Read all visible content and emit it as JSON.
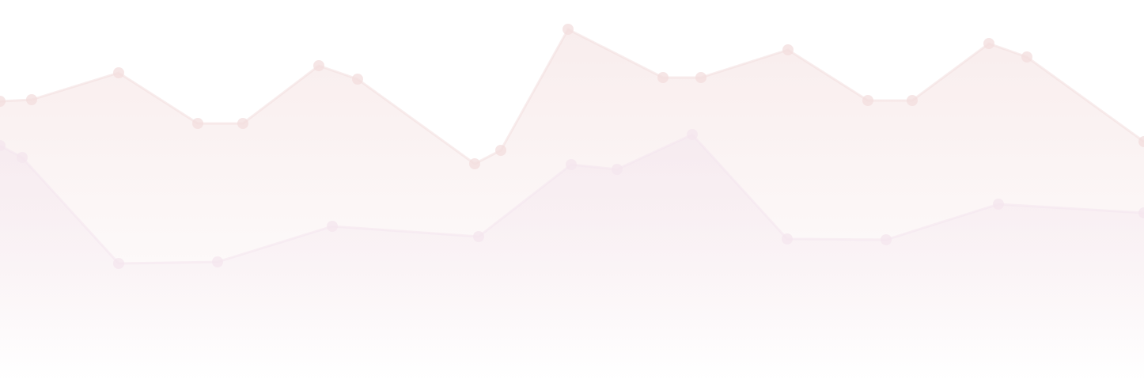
{
  "chart_data": {
    "type": "area",
    "title": "",
    "xlabel": "",
    "ylabel": "",
    "grid": false,
    "legend": "none",
    "ylim": [
      0,
      479
    ],
    "series": [
      {
        "color": "#f3dede",
        "points": [
          {
            "x": 0,
            "y": 351
          },
          {
            "x": 40,
            "y": 353
          },
          {
            "x": 150,
            "y": 387
          },
          {
            "x": 250,
            "y": 323
          },
          {
            "x": 307,
            "y": 323
          },
          {
            "x": 403,
            "y": 396
          },
          {
            "x": 452,
            "y": 379
          },
          {
            "x": 600,
            "y": 272
          },
          {
            "x": 633,
            "y": 289
          },
          {
            "x": 718,
            "y": 442
          },
          {
            "x": 838,
            "y": 381
          },
          {
            "x": 886,
            "y": 381
          },
          {
            "x": 996,
            "y": 416
          },
          {
            "x": 1097,
            "y": 352
          },
          {
            "x": 1153,
            "y": 352
          },
          {
            "x": 1250,
            "y": 424
          },
          {
            "x": 1298,
            "y": 407
          },
          {
            "x": 1446,
            "y": 300
          }
        ]
      },
      {
        "color": "#f4e6ee",
        "points": [
          {
            "x": 0,
            "y": 295
          },
          {
            "x": 28,
            "y": 280
          },
          {
            "x": 150,
            "y": 146
          },
          {
            "x": 275,
            "y": 148
          },
          {
            "x": 420,
            "y": 193
          },
          {
            "x": 605,
            "y": 180
          },
          {
            "x": 722,
            "y": 271
          },
          {
            "x": 780,
            "y": 265
          },
          {
            "x": 875,
            "y": 309
          },
          {
            "x": 995,
            "y": 177
          },
          {
            "x": 1120,
            "y": 176
          },
          {
            "x": 1262,
            "y": 221
          },
          {
            "x": 1446,
            "y": 210
          }
        ]
      }
    ],
    "annotations": {
      "crosshair_x": 718
    }
  }
}
